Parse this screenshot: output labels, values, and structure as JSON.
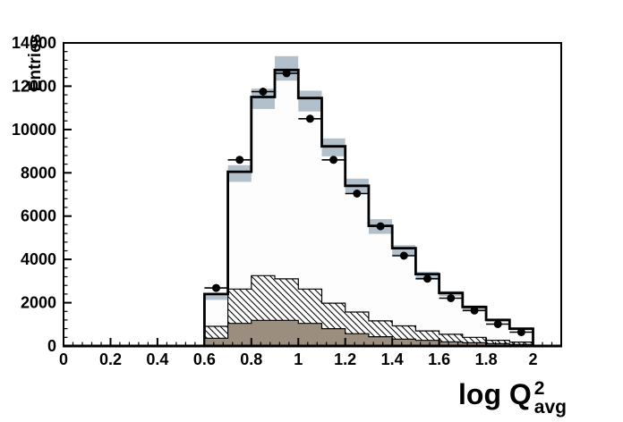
{
  "chart_data": {
    "type": "bar",
    "subtype": "root-histogram-overlay",
    "title": "",
    "ylabel": "Entries",
    "xlabel": {
      "main": "log Q",
      "sup": "2",
      "sub": "avg"
    },
    "x_range": [
      0,
      2.12
    ],
    "y_range": [
      0,
      14000
    ],
    "x_tick_values": [
      0,
      0.2,
      0.4,
      0.6,
      0.8,
      1,
      1.2,
      1.4,
      1.6,
      1.8,
      2
    ],
    "x_tick_labels": [
      "0",
      "0.2",
      "0.4",
      "0.6",
      "0.8",
      "1",
      "1.2",
      "1.4",
      "1.6",
      "1.8",
      "2"
    ],
    "x_minor_tick_step": 0.04,
    "y_tick_values": [
      0,
      2000,
      4000,
      6000,
      8000,
      10000,
      12000,
      14000
    ],
    "y_tick_labels": [
      "0",
      "2000",
      "4000",
      "6000",
      "8000",
      "10000",
      "12000",
      "14000"
    ],
    "y_minor_tick_step": 400,
    "grid": false,
    "legend": null,
    "bin_edges": [
      0.6,
      0.7,
      0.8,
      0.9,
      1.0,
      1.1,
      1.2,
      1.3,
      1.4,
      1.5,
      1.6,
      1.7,
      1.8,
      1.9,
      2.0
    ],
    "series": [
      {
        "name": "mc-total-histogram",
        "style": "open-step",
        "line_color": "#000000",
        "fill_color": "#fdfdfd",
        "values": [
          2400,
          8050,
          11500,
          12750,
          11450,
          9220,
          7400,
          5550,
          4520,
          3320,
          2450,
          1800,
          1200,
          800
        ]
      },
      {
        "name": "uncertainty-band",
        "style": "band",
        "color": "#b2c0cc",
        "lo": [
          2130,
          7580,
          10950,
          12260,
          10830,
          8760,
          7040,
          5180,
          4150,
          3060,
          2300,
          1690,
          1120,
          730
        ],
        "hi": [
          2450,
          8350,
          11890,
          13390,
          11790,
          9590,
          7730,
          5860,
          4660,
          3430,
          2530,
          1880,
          1270,
          860
        ]
      },
      {
        "name": "hatched-component-histogram",
        "style": "hatched",
        "line_color": "#000000",
        "values": [
          910,
          2630,
          3250,
          3100,
          2630,
          1980,
          1570,
          1160,
          930,
          700,
          540,
          400,
          265,
          180
        ]
      },
      {
        "name": "solid-component-histogram",
        "style": "filled",
        "color": "#9c8e7e",
        "line_color": "#000000",
        "values": [
          360,
          1045,
          1185,
          1185,
          1045,
          800,
          570,
          430,
          320,
          260,
          195,
          150,
          110,
          70
        ]
      },
      {
        "name": "data-points",
        "style": "points",
        "color": "#000000",
        "x": [
          0.65,
          0.75,
          0.85,
          0.95,
          1.05,
          1.15,
          1.25,
          1.35,
          1.45,
          1.55,
          1.65,
          1.75,
          1.85,
          1.95
        ],
        "y": [
          2680,
          8600,
          11750,
          12600,
          10500,
          8600,
          7040,
          5530,
          4170,
          3110,
          2210,
          1640,
          1010,
          640
        ],
        "xerr_half_width": 0.05
      }
    ]
  }
}
